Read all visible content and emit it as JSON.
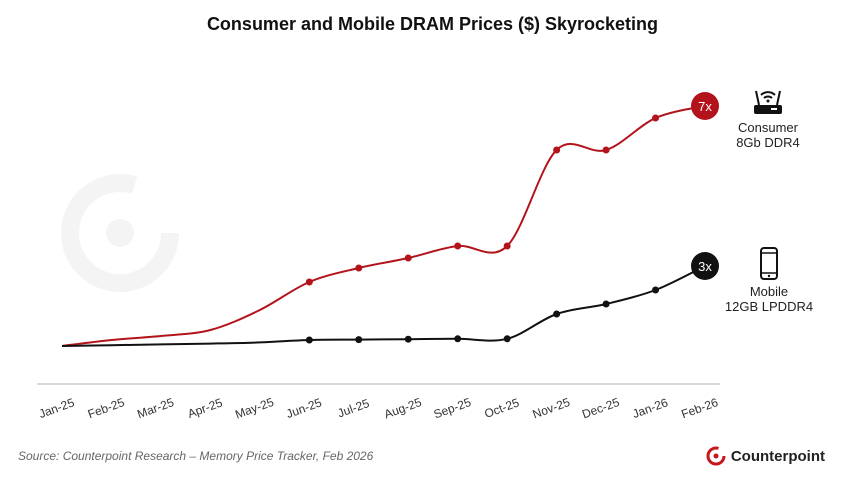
{
  "chart_data": {
    "type": "line",
    "title": "Consumer and Mobile DRAM Prices ($) Skyrocketing",
    "categories": [
      "Jan-25",
      "Feb-25",
      "Mar-25",
      "Apr-25",
      "May-25",
      "Jun-25",
      "Jul-25",
      "Aug-25",
      "Sep-25",
      "Oct-25",
      "Nov-25",
      "Dec-25",
      "Jan-26",
      "Feb-26"
    ],
    "series": [
      {
        "name": "Consumer 8Gb DDR4",
        "color": "#b3141c",
        "values": [
          1.0,
          1.15,
          1.25,
          1.4,
          1.9,
          2.6,
          2.95,
          3.2,
          3.5,
          3.5,
          5.9,
          5.9,
          6.7,
          7.0
        ],
        "end_label": "7x"
      },
      {
        "name": "Mobile 12GB LPDDR4",
        "color": "#111111",
        "values": [
          1.0,
          1.02,
          1.04,
          1.06,
          1.09,
          1.15,
          1.16,
          1.17,
          1.18,
          1.18,
          1.8,
          2.05,
          2.4,
          3.0
        ],
        "end_label": "3x"
      }
    ],
    "grid": false,
    "y_axis_shown": false
  },
  "labels": {
    "consumer_line1": "Consumer",
    "consumer_line2": "8Gb DDR4",
    "mobile_line1": "Mobile",
    "mobile_line2": "12GB LPDDR4"
  },
  "icons": {
    "consumer": "router-icon",
    "mobile": "smartphone-icon"
  },
  "watermark": "Counterpoint",
  "source": "Source: Counterpoint Research – Memory Price Tracker, Feb 2026",
  "brand": "Counterpoint",
  "brand_color": "#c8161d"
}
